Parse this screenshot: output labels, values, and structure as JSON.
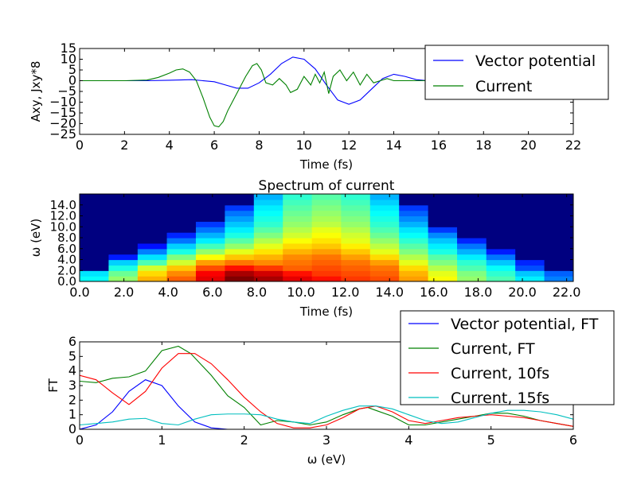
{
  "chart_data": [
    {
      "type": "line",
      "xlabel": "Time (fs)",
      "ylabel": "Axy, Jxy*8",
      "xlim": [
        0,
        22
      ],
      "ylim": [
        -25,
        15
      ],
      "xticks": [
        0,
        2,
        4,
        6,
        8,
        10,
        12,
        14,
        16,
        18,
        20,
        22
      ],
      "xtick_labels": [
        "0",
        "2",
        "4",
        "6",
        "8",
        "10",
        "12",
        "14",
        "16",
        "18",
        "20",
        "22"
      ],
      "yticks": [
        15,
        10,
        5,
        0,
        -5,
        -10,
        -15,
        -20,
        -25
      ],
      "ytick_labels": [
        "15",
        "10",
        "5",
        "0",
        "−5",
        "−10",
        "−15",
        "−20",
        "−25"
      ],
      "legend": "top-right",
      "grid": false,
      "series": [
        {
          "name": "Vector potential",
          "color": "#0000ff",
          "x": [
            0,
            2,
            3,
            4,
            5,
            6,
            6.5,
            7,
            7.5,
            8,
            8.5,
            9,
            9.5,
            10,
            10.5,
            11,
            11.5,
            12,
            12.5,
            13,
            13.5,
            14,
            14.5,
            15,
            15.5,
            16
          ],
          "y": [
            0,
            0,
            0,
            0.2,
            0.5,
            -0.5,
            -2,
            -3.5,
            -3.5,
            -1,
            3,
            8,
            11,
            10,
            5.5,
            -2,
            -9,
            -11,
            -9,
            -4,
            1,
            3,
            2,
            0.5,
            0,
            0
          ]
        },
        {
          "name": "Current",
          "color": "#008000",
          "x": [
            0,
            2,
            3,
            3.5,
            4,
            4.3,
            4.6,
            4.9,
            5.2,
            5.5,
            5.8,
            6,
            6.2,
            6.4,
            6.6,
            7,
            7.4,
            7.7,
            7.9,
            8.1,
            8.3,
            8.6,
            8.9,
            9.2,
            9.4,
            9.7,
            10,
            10.3,
            10.5,
            10.7,
            10.9,
            11.1,
            11.3,
            11.6,
            11.9,
            12.2,
            12.5,
            12.8,
            13.1,
            13.4,
            13.7,
            14,
            14.5,
            15,
            15.5,
            16
          ],
          "y": [
            0,
            0,
            0.3,
            1.5,
            3.5,
            5,
            5.5,
            4,
            0,
            -8,
            -17,
            -21,
            -21.5,
            -19,
            -14,
            -6,
            2,
            7,
            8,
            5,
            -1,
            -2,
            1,
            -2,
            -5.5,
            -4,
            2,
            -2,
            3,
            -1,
            4,
            -6,
            2,
            5,
            0,
            4,
            -2,
            3,
            -1,
            0,
            1,
            0,
            0,
            0,
            0,
            0
          ]
        }
      ]
    },
    {
      "type": "heatmap",
      "title": "Spectrum of current",
      "xlabel": "Time (fs)",
      "ylabel": "ω (eV)",
      "xlim": [
        0,
        22.3
      ],
      "ylim": [
        0,
        16
      ],
      "xticks": [
        0,
        2,
        4,
        6,
        8,
        10,
        12,
        14,
        16,
        18,
        20,
        22
      ],
      "xtick_labels": [
        "0.0",
        "2.0",
        "4.0",
        "6.0",
        "8.0",
        "10.0",
        "12.0",
        "14.0",
        "16.0",
        "18.0",
        "20.0",
        "22.0"
      ],
      "yticks": [
        0,
        2,
        4,
        6,
        8,
        10,
        12,
        14
      ],
      "ytick_labels": [
        "0.0",
        "2.0",
        "4.0",
        "6.0",
        "8.0",
        "10.0",
        "12.0",
        "14.0"
      ],
      "colormap": "jet",
      "grid": false,
      "x_edges": [
        0,
        1.31,
        2.62,
        3.94,
        5.25,
        6.56,
        7.87,
        9.18,
        10.49,
        11.81,
        13.12,
        14.43,
        15.74,
        17.05,
        18.37,
        19.68,
        20.99,
        22.3
      ],
      "y_edges": [
        0,
        1,
        2,
        3,
        4,
        5,
        6,
        7,
        8,
        9,
        10,
        11,
        12,
        13,
        14,
        15,
        16
      ],
      "values_rows_from_low_omega": [
        [
          0.38,
          0.52,
          0.7,
          0.78,
          0.9,
          1.0,
          0.96,
          0.9,
          0.86,
          0.82,
          0.8,
          0.72,
          0.62,
          0.52,
          0.45,
          0.36,
          0.25
        ],
        [
          0.35,
          0.48,
          0.66,
          0.74,
          0.88,
          0.96,
          0.92,
          0.86,
          0.82,
          0.8,
          0.78,
          0.7,
          0.6,
          0.5,
          0.42,
          0.32,
          0.22
        ],
        [
          0.0,
          0.4,
          0.58,
          0.68,
          0.8,
          0.86,
          0.82,
          0.78,
          0.8,
          0.78,
          0.76,
          0.66,
          0.55,
          0.45,
          0.38,
          0.2,
          0.0
        ],
        [
          0.0,
          0.33,
          0.45,
          0.58,
          0.72,
          0.76,
          0.74,
          0.76,
          0.78,
          0.76,
          0.72,
          0.6,
          0.5,
          0.42,
          0.32,
          0.16,
          0.0
        ],
        [
          0.0,
          0.15,
          0.35,
          0.5,
          0.62,
          0.68,
          0.7,
          0.74,
          0.76,
          0.72,
          0.66,
          0.55,
          0.46,
          0.36,
          0.24,
          0.0,
          0.0
        ],
        [
          0.0,
          0.0,
          0.25,
          0.4,
          0.52,
          0.6,
          0.65,
          0.7,
          0.72,
          0.68,
          0.6,
          0.5,
          0.4,
          0.3,
          0.15,
          0.0,
          0.0
        ],
        [
          0.0,
          0.0,
          0.14,
          0.33,
          0.44,
          0.52,
          0.6,
          0.66,
          0.68,
          0.64,
          0.56,
          0.46,
          0.36,
          0.24,
          0.0,
          0.0,
          0.0
        ],
        [
          0.0,
          0.0,
          0.0,
          0.24,
          0.36,
          0.46,
          0.55,
          0.62,
          0.65,
          0.6,
          0.52,
          0.42,
          0.32,
          0.16,
          0.0,
          0.0,
          0.0
        ],
        [
          0.0,
          0.0,
          0.0,
          0.16,
          0.3,
          0.4,
          0.5,
          0.58,
          0.62,
          0.58,
          0.48,
          0.38,
          0.26,
          0.0,
          0.0,
          0.0,
          0.0
        ],
        [
          0.0,
          0.0,
          0.0,
          0.0,
          0.24,
          0.36,
          0.46,
          0.55,
          0.6,
          0.55,
          0.45,
          0.35,
          0.18,
          0.0,
          0.0,
          0.0,
          0.0
        ],
        [
          0.0,
          0.0,
          0.0,
          0.0,
          0.18,
          0.32,
          0.42,
          0.52,
          0.56,
          0.52,
          0.42,
          0.3,
          0.0,
          0.0,
          0.0,
          0.0,
          0.0
        ],
        [
          0.0,
          0.0,
          0.0,
          0.0,
          0.0,
          0.28,
          0.4,
          0.5,
          0.54,
          0.5,
          0.4,
          0.26,
          0.0,
          0.0,
          0.0,
          0.0,
          0.0
        ],
        [
          0.0,
          0.0,
          0.0,
          0.0,
          0.0,
          0.24,
          0.38,
          0.48,
          0.52,
          0.48,
          0.38,
          0.22,
          0.0,
          0.0,
          0.0,
          0.0,
          0.0
        ],
        [
          0.0,
          0.0,
          0.0,
          0.0,
          0.0,
          0.18,
          0.36,
          0.46,
          0.5,
          0.46,
          0.36,
          0.18,
          0.0,
          0.0,
          0.0,
          0.0,
          0.0
        ],
        [
          0.0,
          0.0,
          0.0,
          0.0,
          0.0,
          0.0,
          0.33,
          0.44,
          0.48,
          0.44,
          0.33,
          0.0,
          0.0,
          0.0,
          0.0,
          0.0,
          0.0
        ],
        [
          0.0,
          0.0,
          0.0,
          0.0,
          0.0,
          0.0,
          0.3,
          0.42,
          0.46,
          0.42,
          0.3,
          0.0,
          0.0,
          0.0,
          0.0,
          0.0,
          0.0
        ]
      ]
    },
    {
      "type": "line",
      "xlabel": "ω (eV)",
      "ylabel": "FT",
      "xlim": [
        0,
        6
      ],
      "ylim": [
        0,
        6
      ],
      "xticks": [
        0,
        1,
        2,
        3,
        4,
        5,
        6
      ],
      "xtick_labels": [
        "0",
        "1",
        "2",
        "3",
        "4",
        "5",
        "6"
      ],
      "yticks": [
        0,
        1,
        2,
        3,
        4,
        5,
        6
      ],
      "ytick_labels": [
        "0",
        "1",
        "2",
        "3",
        "4",
        "5",
        "6"
      ],
      "legend": "top-right",
      "grid": false,
      "series": [
        {
          "name": "Vector potential, FT",
          "color": "#0000ff",
          "x": [
            0,
            0.2,
            0.4,
            0.6,
            0.8,
            1.0,
            1.2,
            1.4,
            1.6,
            1.8,
            2.0,
            2.5,
            3,
            3.5,
            4,
            4.5,
            5,
            5.5,
            6
          ],
          "y": [
            0,
            0.3,
            1.2,
            2.6,
            3.4,
            3.0,
            1.6,
            0.5,
            0.1,
            0,
            0,
            0,
            0,
            0,
            0,
            0,
            0,
            0,
            0
          ]
        },
        {
          "name": "Current, FT",
          "color": "#008000",
          "x": [
            0,
            0.2,
            0.4,
            0.6,
            0.8,
            1.0,
            1.2,
            1.35,
            1.6,
            1.8,
            2.0,
            2.2,
            2.4,
            2.6,
            2.8,
            3.0,
            3.2,
            3.4,
            3.5,
            3.6,
            3.8,
            4.0,
            4.2,
            4.4,
            4.6,
            4.8,
            5.0,
            5.2,
            5.4,
            5.6,
            5.8,
            6.0
          ],
          "y": [
            3.3,
            3.2,
            3.5,
            3.6,
            4.0,
            5.4,
            5.7,
            5.2,
            3.7,
            2.3,
            1.5,
            0.3,
            0.6,
            0.5,
            0.3,
            0.5,
            1.0,
            1.4,
            1.5,
            1.3,
            0.9,
            0.3,
            0.3,
            0.5,
            0.7,
            0.9,
            1.1,
            1.1,
            0.9,
            0.6,
            0.4,
            0.2
          ]
        },
        {
          "name": "Current, 10fs",
          "color": "#ff0000",
          "x": [
            0,
            0.2,
            0.4,
            0.6,
            0.8,
            1.0,
            1.2,
            1.4,
            1.6,
            1.8,
            2.0,
            2.2,
            2.4,
            2.6,
            2.8,
            3.0,
            3.2,
            3.4,
            3.6,
            3.8,
            4.0,
            4.2,
            4.4,
            4.6,
            4.8,
            5.0,
            5.2,
            5.4,
            5.6,
            5.8,
            6.0
          ],
          "y": [
            3.7,
            3.4,
            2.5,
            1.7,
            2.6,
            4.2,
            5.2,
            5.2,
            4.5,
            3.4,
            2.2,
            1.2,
            0.4,
            0.1,
            0.1,
            0.3,
            0.8,
            1.4,
            1.6,
            1.2,
            0.6,
            0.4,
            0.6,
            0.8,
            0.9,
            1.0,
            0.9,
            0.8,
            0.6,
            0.4,
            0.2
          ]
        },
        {
          "name": "Current, 15fs",
          "color": "#00bfbf",
          "x": [
            0,
            0.2,
            0.4,
            0.6,
            0.8,
            1.0,
            1.2,
            1.4,
            1.6,
            1.8,
            2.0,
            2.2,
            2.4,
            2.6,
            2.8,
            3.0,
            3.2,
            3.4,
            3.6,
            3.8,
            4.0,
            4.2,
            4.4,
            4.6,
            4.8,
            5.0,
            5.2,
            5.4,
            5.6,
            5.8,
            6.0
          ],
          "y": [
            0.3,
            0.4,
            0.5,
            0.7,
            0.75,
            0.4,
            0.3,
            0.7,
            1.0,
            1.05,
            1.05,
            1.0,
            0.7,
            0.5,
            0.4,
            0.9,
            1.3,
            1.6,
            1.6,
            1.4,
            1.0,
            0.6,
            0.4,
            0.5,
            0.8,
            1.1,
            1.3,
            1.3,
            1.2,
            1.0,
            0.7
          ]
        }
      ]
    }
  ]
}
